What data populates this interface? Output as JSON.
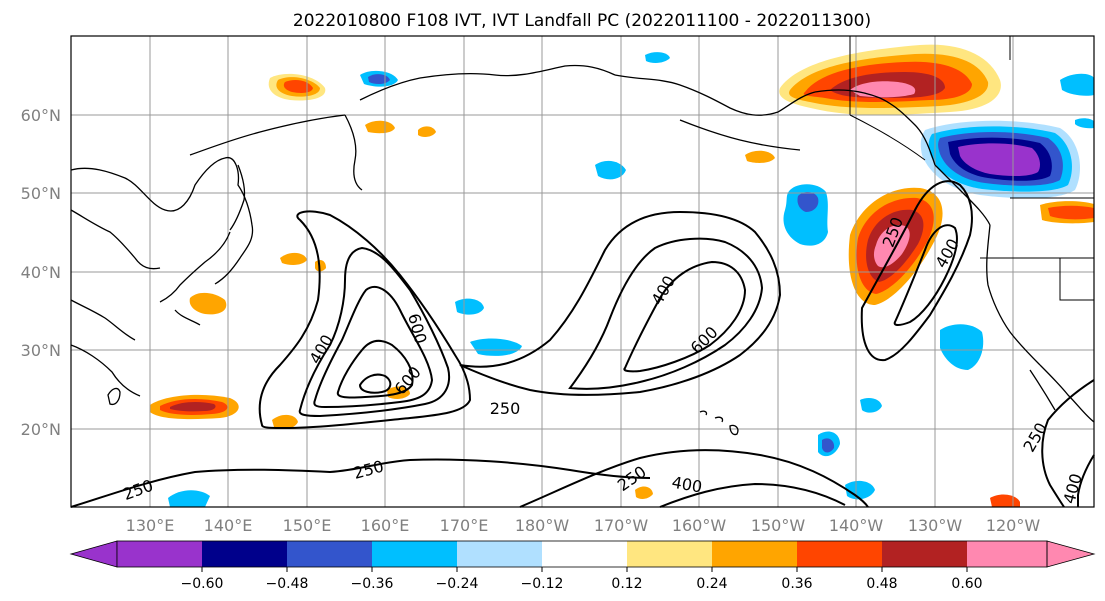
{
  "title": "2022010800 F108 IVT, IVT Landfall PC (2022011100 - 2022011300)",
  "lat_labels": [
    "60°N",
    "50°N",
    "40°N",
    "30°N",
    "20°N"
  ],
  "lon_labels": [
    "130°E",
    "140°E",
    "150°E",
    "160°E",
    "170°E",
    "180°W",
    "170°W",
    "160°W",
    "150°W",
    "140°W",
    "130°W",
    "120°W"
  ],
  "contour_labels": [
    "250",
    "400",
    "600",
    "600",
    "400",
    "250",
    "400",
    "600",
    "250",
    "250",
    "400",
    "250",
    "250",
    "400",
    "250",
    "400"
  ],
  "colorbar": {
    "tick_labels": [
      "−0.60",
      "−0.48",
      "−0.36",
      "−0.24",
      "−0.12",
      "0.12",
      "0.24",
      "0.36",
      "0.48",
      "0.60"
    ],
    "colors": [
      "#9933cc",
      "#00008b",
      "#3355cc",
      "#00bfff",
      "#b0e0ff",
      "#ffffff",
      "#ffe680",
      "#ffa500",
      "#ff4500",
      "#b22222",
      "#ff88b0"
    ]
  },
  "fill_colors": {
    "neg_strong": "#9933cc",
    "neg_dark": "#00008b",
    "neg_mid": "#3355cc",
    "neg_light": "#00bfff",
    "neg_faint": "#b0e0ff",
    "pos_faint": "#ffe680",
    "pos_light": "#ffa500",
    "pos_mid": "#ff4500",
    "pos_dark": "#b22222",
    "pos_strong": "#ff88b0"
  }
}
